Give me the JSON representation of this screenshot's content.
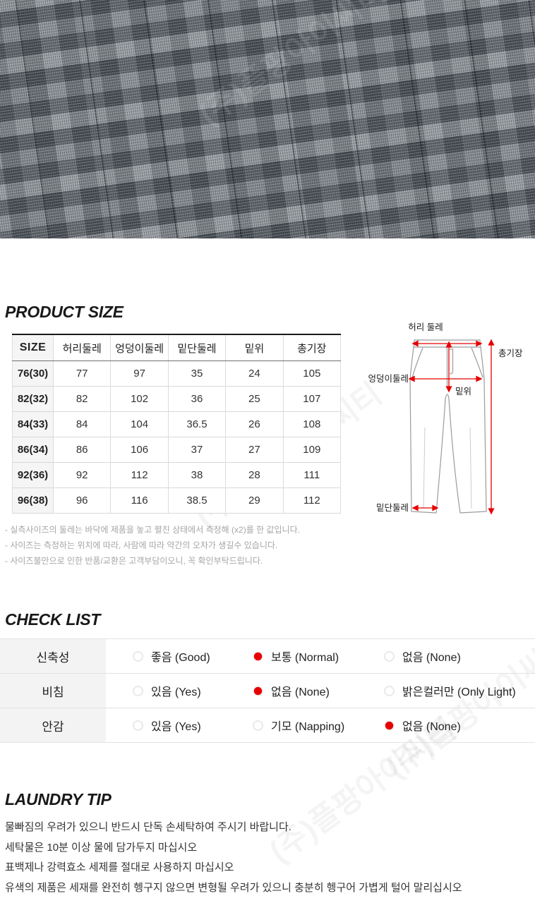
{
  "watermark": {
    "text": "(주)플팡아이씨티"
  },
  "colors": {
    "accent_red": "#e60000",
    "size_col_bg": "#f5f5f5",
    "checklist_label_bg": "#f3f3f3",
    "fabric_base": "#6e747b"
  },
  "product_size": {
    "title": "PRODUCT SIZE",
    "table": {
      "headers": [
        "SIZE",
        "허리둘레",
        "엉덩이둘레",
        "밑단둘레",
        "밑위",
        "총기장"
      ],
      "rows": [
        {
          "size": "76(30)",
          "values": [
            "77",
            "97",
            "35",
            "24",
            "105"
          ]
        },
        {
          "size": "82(32)",
          "values": [
            "82",
            "102",
            "36",
            "25",
            "107"
          ]
        },
        {
          "size": "84(33)",
          "values": [
            "84",
            "104",
            "36.5",
            "26",
            "108"
          ]
        },
        {
          "size": "86(34)",
          "values": [
            "86",
            "106",
            "37",
            "27",
            "109"
          ]
        },
        {
          "size": "92(36)",
          "values": [
            "92",
            "112",
            "38",
            "28",
            "111"
          ]
        },
        {
          "size": "96(38)",
          "values": [
            "96",
            "116",
            "38.5",
            "29",
            "112"
          ]
        }
      ]
    },
    "diagram": {
      "waist": "허리 둘레",
      "hip": "엉덩이둘레",
      "rise": "밑위",
      "length": "총기장",
      "hem": "밑단둘레"
    },
    "notes": [
      "- 실측사이즈의 둘레는 바닥에 제품을 놓고 펼친 상태에서 측정해 (x2)를 한 값입니다.",
      "- 사이즈는 측정하는 위치에 따라, 사람에 따라 약간의 오차가 생길수 있습니다.",
      "- 사이즈불만으로 인한 반품/교환은 고객부담이오니, 꼭 확인부탁드립니다."
    ]
  },
  "check_list": {
    "title": "CHECK LIST",
    "rows": [
      {
        "label": "신축성",
        "options": [
          {
            "label": "좋음 (Good)",
            "checked": false
          },
          {
            "label": "보통 (Normal)",
            "checked": true
          },
          {
            "label": "없음 (None)",
            "checked": false
          }
        ]
      },
      {
        "label": "비침",
        "options": [
          {
            "label": "있음 (Yes)",
            "checked": false
          },
          {
            "label": "없음 (None)",
            "checked": true
          },
          {
            "label": "밝은컬러만 (Only Light)",
            "checked": false
          }
        ]
      },
      {
        "label": "안감",
        "options": [
          {
            "label": "있음 (Yes)",
            "checked": false
          },
          {
            "label": "기모 (Napping)",
            "checked": false
          },
          {
            "label": "없음 (None)",
            "checked": true
          }
        ]
      }
    ]
  },
  "laundry_tip": {
    "title": "LAUNDRY TIP",
    "lines": [
      "물빠짐의 우려가 있으니 반드시 단독 손세탁하여 주시기 바랍니다.",
      "세탁물은 10분 이상 물에 담가두지 마십시오",
      "표백제나 강력효소 세제를 절대로 사용하지 마십시오",
      "유색의 제품은 세재를 완전히 헹구지 않으면 변형될 우려가 있으니 충분히 헹구어 가볍게 털어 말리십시오"
    ]
  }
}
